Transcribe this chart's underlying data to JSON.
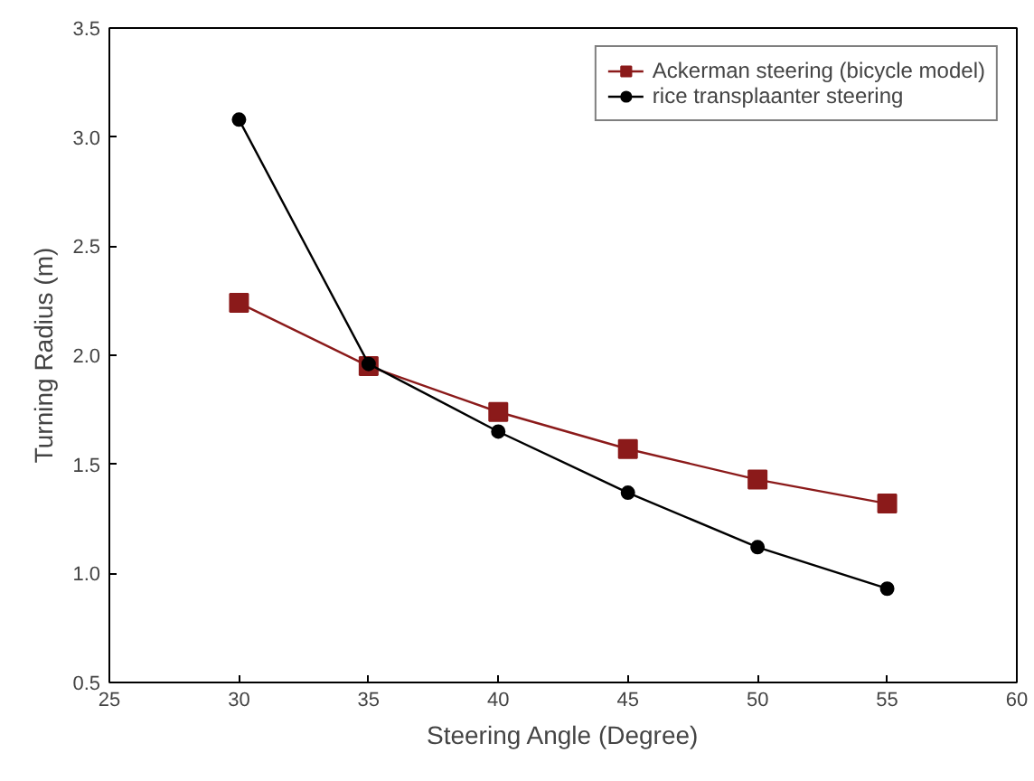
{
  "chart_data": {
    "type": "line",
    "xlabel": "Steering Angle (Degree)",
    "ylabel": "Turning Radius (m)",
    "x": [
      30,
      35,
      40,
      45,
      50,
      55
    ],
    "series": [
      {
        "name": "Ackerman steering (bicycle model)",
        "color": "#8b1a1a",
        "marker": "square",
        "values": [
          2.24,
          1.95,
          1.74,
          1.57,
          1.43,
          1.32
        ]
      },
      {
        "name": "rice transplaanter steering",
        "color": "#000000",
        "marker": "circle",
        "values": [
          3.08,
          1.96,
          1.65,
          1.37,
          1.12,
          0.93
        ]
      }
    ],
    "xlim": [
      25,
      60
    ],
    "xticks": [
      25,
      30,
      35,
      40,
      45,
      50,
      55,
      60
    ],
    "ylim": [
      0.5,
      3.5
    ],
    "yticks": [
      {
        "value": 0.5,
        "label": "0.5"
      },
      {
        "value": 1.0,
        "label": "1.0"
      },
      {
        "value": 1.5,
        "label": "1.5"
      },
      {
        "value": 2.0,
        "label": "2.0"
      },
      {
        "value": 2.5,
        "label": "2.5"
      },
      {
        "value": 3.0,
        "label": "3.0"
      },
      {
        "value": 3.5,
        "label": "3.5"
      }
    ],
    "grid": false,
    "legend": "top right",
    "line_style": "solid"
  }
}
